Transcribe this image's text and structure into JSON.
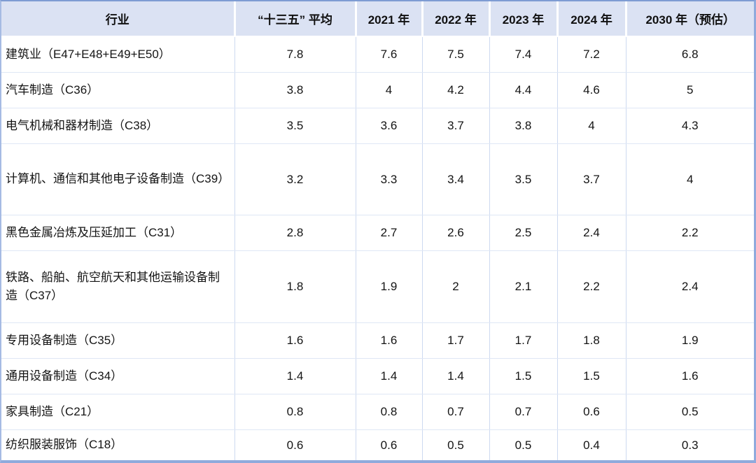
{
  "chart_data": {
    "type": "table",
    "columns": [
      "行业",
      "“十三五” 平均",
      "2021 年",
      "2022 年",
      "2023 年",
      "2024 年",
      "2030 年（预估）"
    ],
    "rows": [
      {
        "label": "建筑业（E47+E48+E49+E50）",
        "values": [
          "7.8",
          "7.6",
          "7.5",
          "7.4",
          "7.2",
          "6.8"
        ]
      },
      {
        "label": "汽车制造（C36）",
        "values": [
          "3.8",
          "4",
          "4.2",
          "4.4",
          "4.6",
          "5"
        ]
      },
      {
        "label": "电气机械和器材制造（C38）",
        "values": [
          "3.5",
          "3.6",
          "3.7",
          "3.8",
          "4",
          "4.3"
        ]
      },
      {
        "label": "计算机、通信和其他电子设备制造（C39）",
        "values": [
          "3.2",
          "3.3",
          "3.4",
          "3.5",
          "3.7",
          "4"
        ]
      },
      {
        "label": "黑色金属冶炼及压延加工（C31）",
        "values": [
          "2.8",
          "2.7",
          "2.6",
          "2.5",
          "2.4",
          "2.2"
        ]
      },
      {
        "label": "铁路、船舶、航空航天和其他运输设备制造（C37）",
        "values": [
          "1.8",
          "1.9",
          "2",
          "2.1",
          "2.2",
          "2.4"
        ]
      },
      {
        "label": "专用设备制造（C35）",
        "values": [
          "1.6",
          "1.6",
          "1.7",
          "1.7",
          "1.8",
          "1.9"
        ]
      },
      {
        "label": "通用设备制造（C34）",
        "values": [
          "1.4",
          "1.4",
          "1.4",
          "1.5",
          "1.5",
          "1.6"
        ]
      },
      {
        "label": "家具制造（C21）",
        "values": [
          "0.8",
          "0.8",
          "0.7",
          "0.7",
          "0.6",
          "0.5"
        ]
      },
      {
        "label": "纺织服装服饰（C18）",
        "values": [
          "0.6",
          "0.6",
          "0.5",
          "0.5",
          "0.4",
          "0.3"
        ]
      }
    ],
    "layout": {
      "legend": "none",
      "grid": "on",
      "header_position": "top"
    },
    "colors": {
      "header_bg": "#dbe2f3",
      "header_separator": "#ffffff",
      "frame_border": "#8aa5d9",
      "grid_vertical": "#cdd9f0",
      "grid_horizontal": "#dfe7f5",
      "text": "#141414"
    }
  }
}
